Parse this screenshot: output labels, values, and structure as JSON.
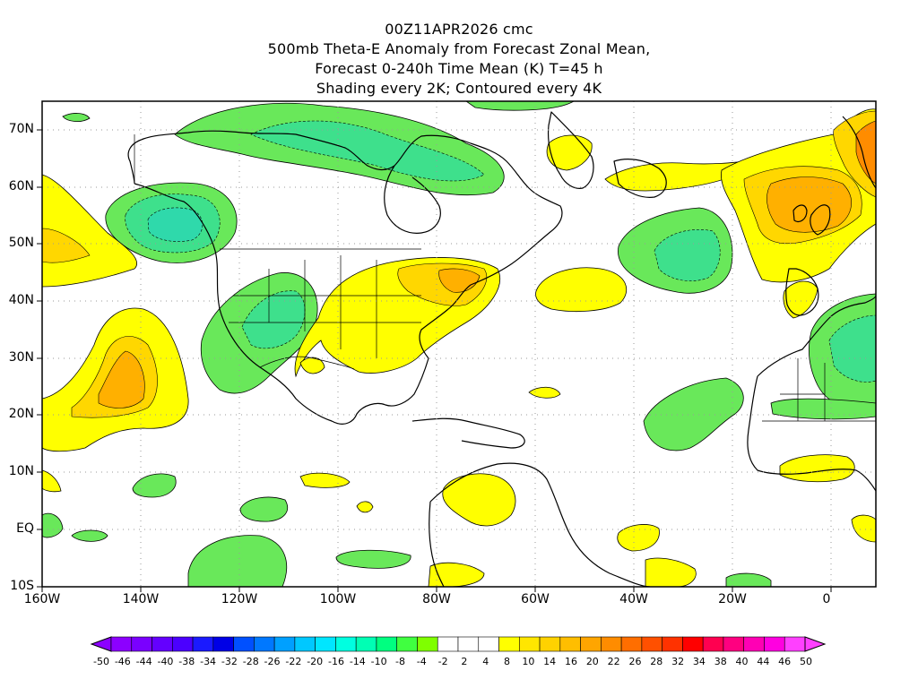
{
  "header": {
    "lines": [
      "00Z11APR2026 cmc",
      "500mb Theta-E Anomaly from Forecast Zonal Mean,",
      "Forecast 0-240h Time Mean (K) T=45 h",
      "Shading every 2K; Contoured every 4K"
    ]
  },
  "map": {
    "lat_labels": [
      "70N",
      "60N",
      "50N",
      "40N",
      "30N",
      "20N",
      "10N",
      "EQ",
      "10S"
    ],
    "lon_labels": [
      "160W",
      "140W",
      "120W",
      "100W",
      "80W",
      "60W",
      "40W",
      "20W",
      "0"
    ],
    "land_color": "#ffffff",
    "grid": "dotted"
  },
  "colorbar": {
    "labels": [
      "-50",
      "-46",
      "-44",
      "-40",
      "-38",
      "-34",
      "-32",
      "-28",
      "-26",
      "-22",
      "-20",
      "-16",
      "-14",
      "-10",
      "-8",
      "-4",
      "-2",
      "2",
      "4",
      "8",
      "10",
      "14",
      "16",
      "20",
      "22",
      "26",
      "28",
      "32",
      "34",
      "38",
      "40",
      "44",
      "46",
      "50"
    ],
    "colors": [
      "#8c00ff",
      "#7a00ff",
      "#6400ff",
      "#4b00ff",
      "#1a1aff",
      "#0000e6",
      "#0050ff",
      "#0078ff",
      "#00a0ff",
      "#00c8ff",
      "#00e6ff",
      "#00ffe0",
      "#00ffb4",
      "#00ff80",
      "#40ff40",
      "#7fff00",
      "#ffffff",
      "#ffffff",
      "#ffffff",
      "#ffff00",
      "#ffe600",
      "#ffd200",
      "#ffbe00",
      "#ffa500",
      "#ff8c00",
      "#ff6e00",
      "#ff5000",
      "#ff3200",
      "#ff0000",
      "#ff0050",
      "#ff0080",
      "#ff00b4",
      "#ff00e0",
      "#ff40ff"
    ]
  },
  "anomaly_colors": {
    "negative_light": "#69e85a",
    "negative_medium": "#3ee08c",
    "negative_strong": "#2fd9ab",
    "positive_light": "#ffff00",
    "positive_medium": "#ffd700",
    "positive_strong": "#ffb000",
    "positive_stronger": "#ff8c00"
  }
}
